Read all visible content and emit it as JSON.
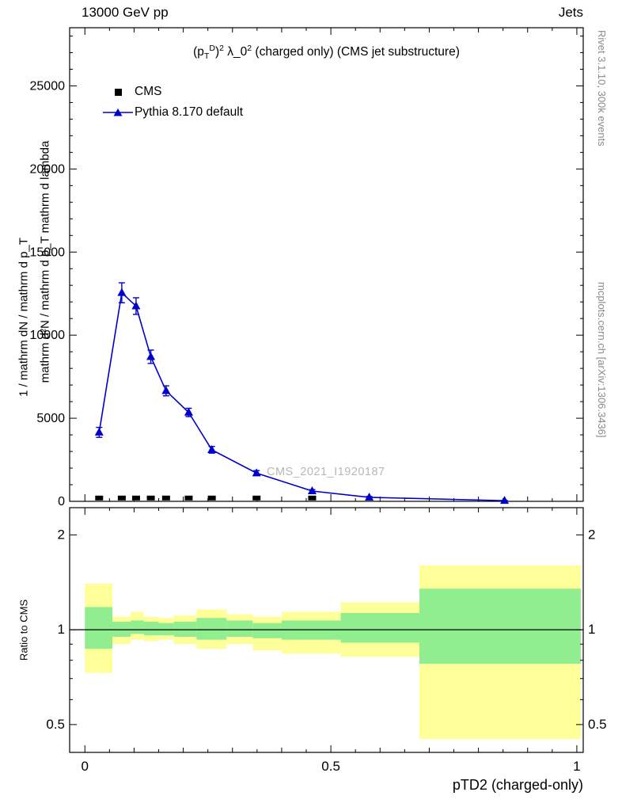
{
  "header": {
    "left_title": "13000 GeV pp",
    "right_title": "Jets"
  },
  "plot_title_segments": [
    {
      "t": "(p",
      "s": "n"
    },
    {
      "t": "T",
      "s": "sub"
    },
    {
      "t": "D",
      "s": "sup"
    },
    {
      "t": ")",
      "s": "n"
    },
    {
      "t": "2",
      "s": "sup"
    },
    {
      "t": " λ_0",
      "s": "n"
    },
    {
      "t": "2",
      "s": "sup"
    },
    {
      "t": " (charged only) (CMS jet substructure)",
      "s": "n"
    }
  ],
  "legend": {
    "cms_label": "CMS",
    "pythia_label": "Pythia 8.170 default"
  },
  "watermark": "CMS_2021_I1920187",
  "side_notes": {
    "rivet": "Rivet 3.1.10,  300k events",
    "mcplots": "mcplots.cern.ch [arXiv:1306.3436]"
  },
  "axis_labels": {
    "y_inner": "mathrm d²N / mathrm d p_T mathrm d lambda",
    "y_outer": "1 / mathrm dN / mathrm d p_T",
    "ratio_y": "Ratio to CMS",
    "x": "pTD2 (charged-only)"
  },
  "colors": {
    "pythia_blue": "#0000cc",
    "cms_black": "#000000",
    "band_yellow": "#ffff99",
    "band_green": "#90ee90",
    "note_gray": "#8a8a8a",
    "watermark_gray": "#b8b8b8"
  },
  "chart_data": {
    "type": "line",
    "title": "(pT^D)^2 lambda_0^2 (charged only) (CMS jet substructure)",
    "xlabel": "pTD2 (charged-only)",
    "ylabel": "mathrm d2N / mathrm d pT mathrm d lambda",
    "xlim": [
      -0.031,
      1.013
    ],
    "ylim": [
      0,
      28500
    ],
    "xticks": {
      "values": [
        0,
        0.5,
        1
      ],
      "labels": [
        "0",
        "0.5",
        "1"
      ]
    },
    "x_minor_step": 0.05,
    "yticks": {
      "values": [
        0,
        5000,
        10000,
        15000,
        20000,
        25000
      ],
      "labels": [
        "0",
        "5000",
        "10000",
        "15000",
        "20000",
        "25000"
      ]
    },
    "y_minor_step": 1000,
    "legend_position": "top-left",
    "series": [
      {
        "name": "CMS",
        "marker": "square",
        "color": "#000000",
        "x": [
          0.029,
          0.075,
          0.104,
          0.134,
          0.165,
          0.211,
          0.258,
          0.349,
          0.462
        ],
        "y": [
          200,
          200,
          200,
          200,
          200,
          200,
          200,
          200,
          200
        ]
      },
      {
        "name": "Pythia 8.170 default",
        "marker": "triangle",
        "color": "#0000cc",
        "line": true,
        "x": [
          0.029,
          0.075,
          0.104,
          0.134,
          0.165,
          0.211,
          0.258,
          0.349,
          0.462,
          0.578,
          0.853
        ],
        "y": [
          4150,
          12550,
          11750,
          8700,
          6650,
          5350,
          3100,
          1700,
          620,
          240,
          40
        ],
        "yerr": [
          300,
          600,
          500,
          400,
          300,
          250,
          200,
          150,
          80,
          50,
          20
        ]
      }
    ],
    "ratio": {
      "ylabel": "Ratio to CMS",
      "yscale": "log",
      "ylim": [
        0.408,
        2.44
      ],
      "yticks": {
        "values": [
          0.5,
          1,
          2
        ],
        "labels": [
          "0.5",
          "1",
          "2"
        ]
      },
      "y_minor": [
        0.6,
        0.7,
        0.8,
        0.9
      ],
      "reference_line": 1,
      "bins": [
        {
          "x0": 0.0,
          "x1": 0.056,
          "yellow": [
            0.73,
            1.4
          ],
          "green": [
            0.87,
            1.18
          ]
        },
        {
          "x0": 0.056,
          "x1": 0.093,
          "yellow": [
            0.9,
            1.1
          ],
          "green": [
            0.95,
            1.06
          ]
        },
        {
          "x0": 0.093,
          "x1": 0.12,
          "yellow": [
            0.93,
            1.14
          ],
          "green": [
            0.97,
            1.07
          ]
        },
        {
          "x0": 0.12,
          "x1": 0.15,
          "yellow": [
            0.92,
            1.1
          ],
          "green": [
            0.96,
            1.06
          ]
        },
        {
          "x0": 0.15,
          "x1": 0.181,
          "yellow": [
            0.93,
            1.09
          ],
          "green": [
            0.96,
            1.05
          ]
        },
        {
          "x0": 0.181,
          "x1": 0.227,
          "yellow": [
            0.9,
            1.11
          ],
          "green": [
            0.95,
            1.06
          ]
        },
        {
          "x0": 0.227,
          "x1": 0.288,
          "yellow": [
            0.87,
            1.16
          ],
          "green": [
            0.93,
            1.09
          ]
        },
        {
          "x0": 0.288,
          "x1": 0.341,
          "yellow": [
            0.9,
            1.12
          ],
          "green": [
            0.95,
            1.07
          ]
        },
        {
          "x0": 0.341,
          "x1": 0.4,
          "yellow": [
            0.86,
            1.1
          ],
          "green": [
            0.94,
            1.05
          ]
        },
        {
          "x0": 0.4,
          "x1": 0.52,
          "yellow": [
            0.84,
            1.14
          ],
          "green": [
            0.93,
            1.07
          ]
        },
        {
          "x0": 0.52,
          "x1": 0.68,
          "yellow": [
            0.82,
            1.22
          ],
          "green": [
            0.91,
            1.13
          ]
        },
        {
          "x0": 0.68,
          "x1": 1.008,
          "yellow": [
            0.45,
            1.6
          ],
          "green": [
            0.78,
            1.35
          ]
        }
      ]
    }
  }
}
